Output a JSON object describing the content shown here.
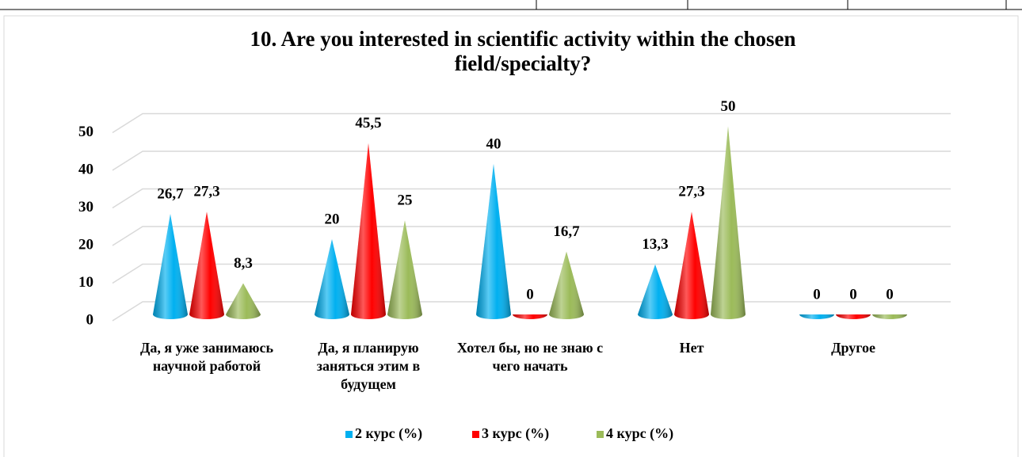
{
  "chart_data": {
    "type": "cone",
    "title": "10. Are you interested in scientific activity within the chosen field/specialty?",
    "categories": [
      "Да, я уже занимаюсь научной работой",
      "Да, я планирую заняться этим в будущем",
      "Хотел бы, но не знаю с чего начать",
      "Нет",
      "Другое"
    ],
    "series": [
      {
        "name": "2 курс (%)",
        "color": "#00b0f0",
        "values": [
          26.7,
          20,
          40,
          13.3,
          0
        ],
        "value_labels": [
          "26,7",
          "20",
          "40",
          "13,3",
          "0"
        ]
      },
      {
        "name": "3 курс (%)",
        "color": "#ff0000",
        "values": [
          27.3,
          45.5,
          0,
          27.3,
          0
        ],
        "value_labels": [
          "27,3",
          "45,5",
          "0",
          "27,3",
          "0"
        ]
      },
      {
        "name": "4 курс (%)",
        "color": "#9bbb59",
        "values": [
          8.3,
          25,
          16.7,
          50,
          0
        ],
        "value_labels": [
          "8,3",
          "25",
          "16,7",
          "50",
          "0"
        ]
      }
    ],
    "ylim": [
      0,
      50
    ],
    "yticks": [
      0,
      10,
      20,
      30,
      40,
      50
    ],
    "grid": true,
    "legend": "bottom"
  }
}
